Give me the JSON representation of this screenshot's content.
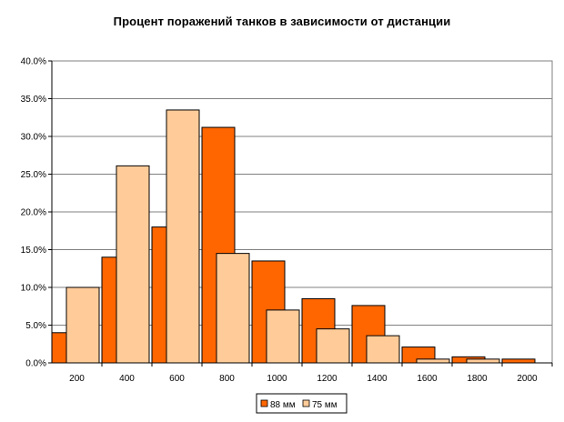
{
  "chart_data": {
    "type": "bar",
    "title": "Процент поражений танков в зависимости от дистанции",
    "xlabel": "",
    "ylabel": "",
    "categories": [
      "200",
      "400",
      "600",
      "800",
      "1000",
      "1200",
      "1400",
      "1600",
      "1800",
      "2000"
    ],
    "series": [
      {
        "name": "88 мм",
        "color": "#ff6600",
        "values": [
          4.0,
          14.0,
          18.0,
          31.2,
          13.5,
          8.5,
          7.6,
          2.1,
          0.8,
          0.5
        ]
      },
      {
        "name": "75 мм",
        "color": "#ffcc99",
        "values": [
          10.0,
          26.1,
          33.5,
          14.5,
          7.0,
          4.5,
          3.6,
          0.5,
          0.5,
          0.0
        ]
      }
    ],
    "ylim": [
      0,
      40
    ],
    "yticks": [
      "0.0%",
      "5.0%",
      "10.0%",
      "15.0%",
      "20.0%",
      "25.0%",
      "30.0%",
      "35.0%",
      "40.0%"
    ],
    "grid": true,
    "legend_position": "bottom"
  }
}
